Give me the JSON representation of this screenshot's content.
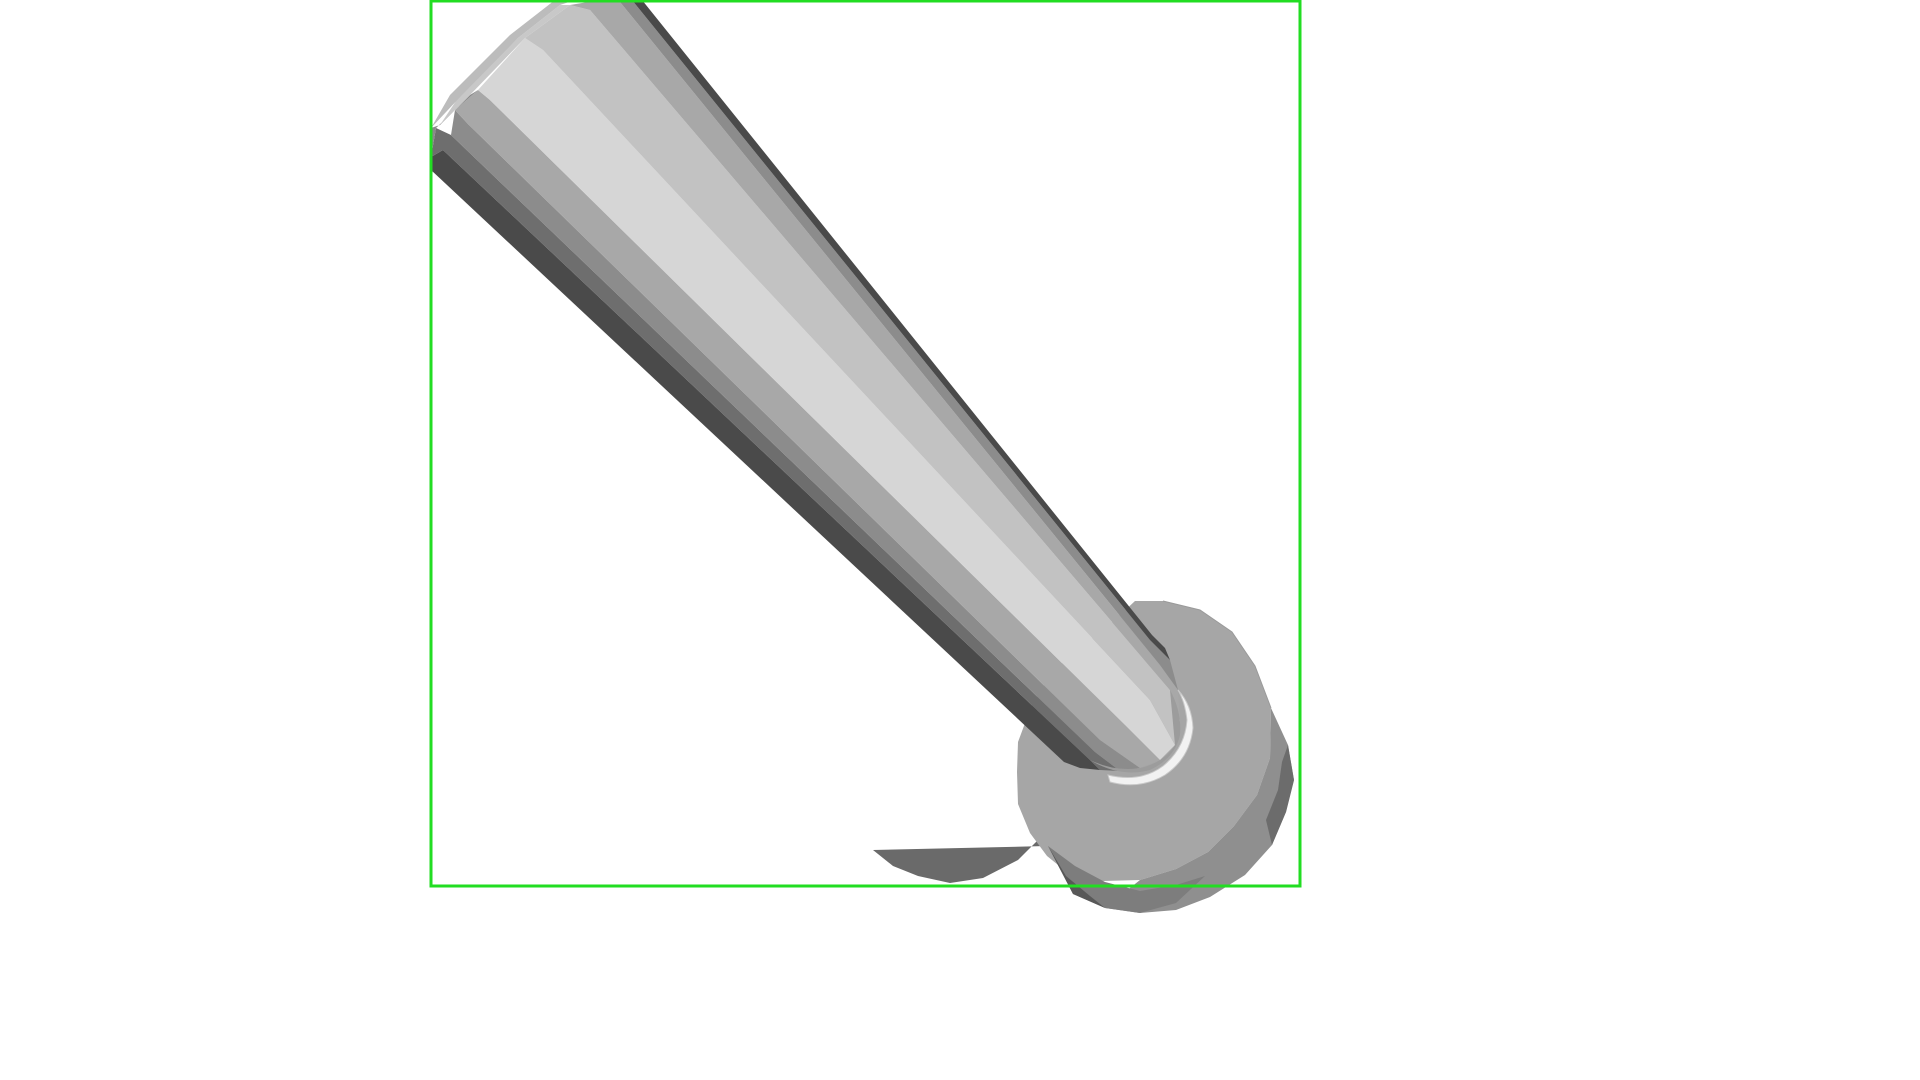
{
  "viewport": {
    "background": "#ffffff"
  },
  "selection_box": {
    "color": "#22dd22",
    "icon": "bounding-box-selection"
  },
  "model": {
    "object": "shaft-with-flange-base",
    "shaft_colors": [
      "#4a4a4a",
      "#6e6e6e",
      "#8c8c8c",
      "#a8a8a8",
      "#c2c2c2",
      "#d6d6d6",
      "#e0e0e0"
    ],
    "base_color": "#a6a6a6",
    "base_edge_color": "#6a6a6a",
    "rim_highlight": "#f2f2f2"
  }
}
